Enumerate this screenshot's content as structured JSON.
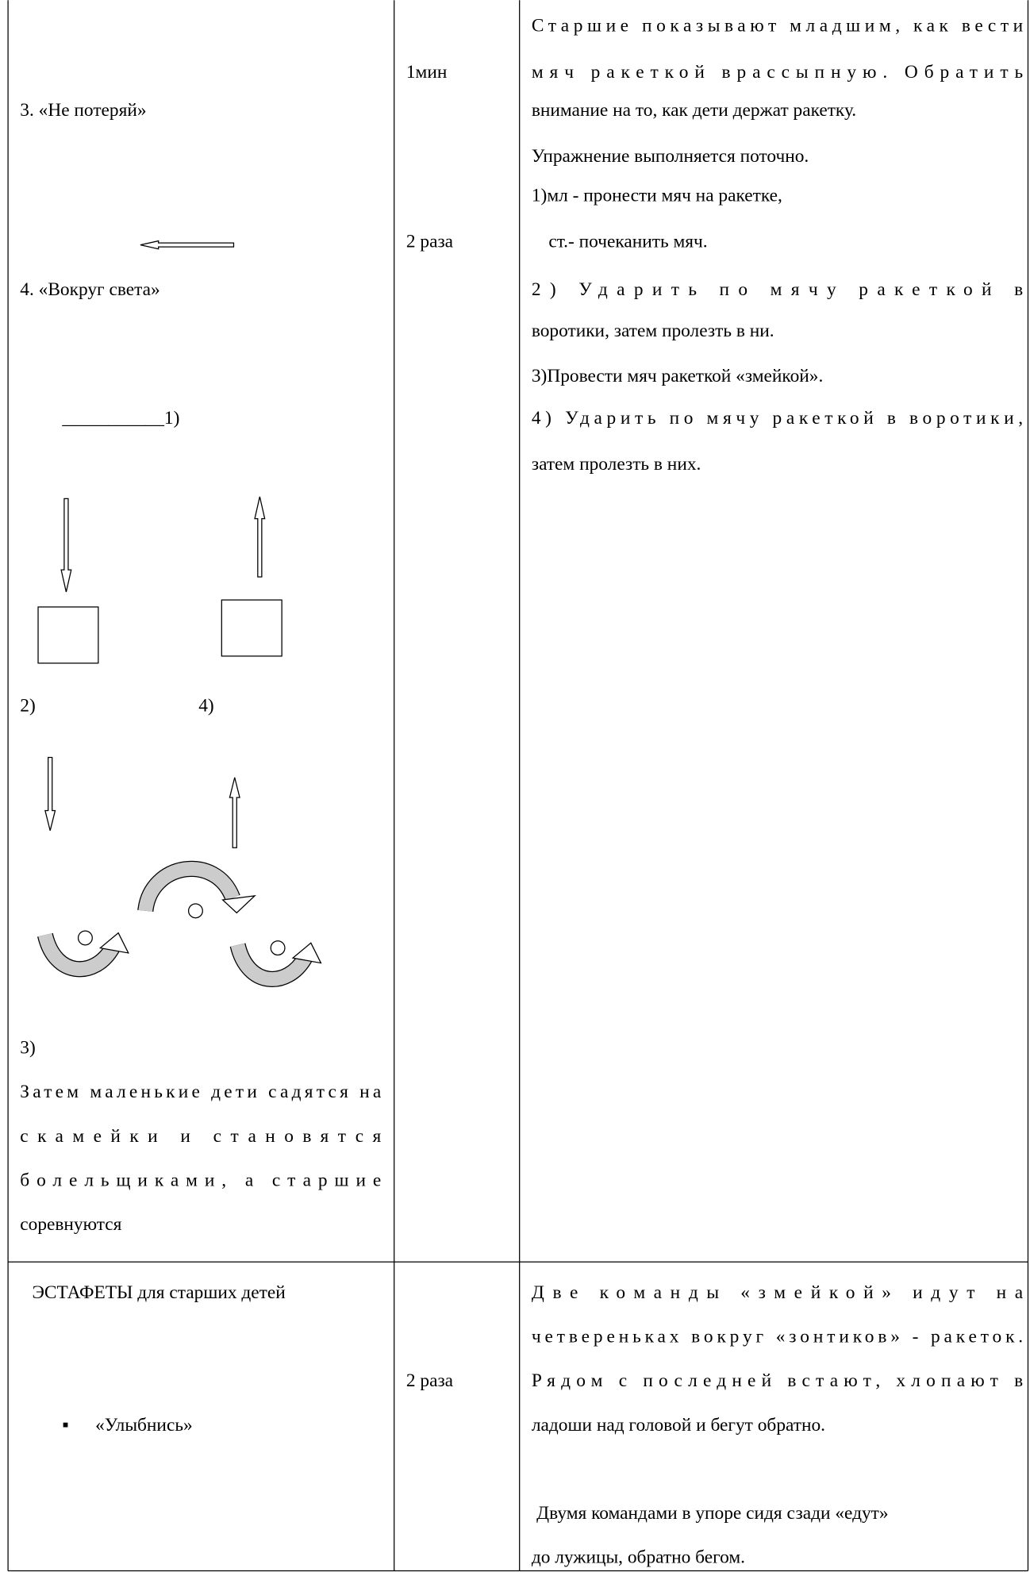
{
  "rows": [
    {
      "exercise": [
        "3. «Не потеряй»",
        "4. «Вокруг света»",
        "___________1)",
        "2)",
        "4)",
        "3)",
        "Затем маленькие дети садятся на",
        "скамейки и становятся",
        "болельщиками, а старшие",
        "соревнуются"
      ],
      "dosage": [
        "1мин",
        "2 раза"
      ],
      "method": [
        "Старшие показывают младшим, как вести",
        "мяч ракеткой врассыпную. Обратить",
        "внимание на то, как дети держат ракетку.",
        "Упражнение выполняется поточно.",
        "1)мл - пронести мяч на ракетке,",
        "ст.- почеканить мяч.",
        "2) Ударить по мячу ракеткой в",
        "воротики, затем пролезть в ни.",
        "3)Провести мяч ракеткой «змейкой».",
        "4) Ударить по мячу ракеткой в воротики,",
        "затем пролезть в них."
      ]
    },
    {
      "exercise": [
        "ЭСТАФЕТЫ для старших детей",
        "▪",
        "«Улыбнись»"
      ],
      "dosage": [
        "2 раза"
      ],
      "method": [
        "Две команды «змейкой» идут на",
        "четвереньках вокруг «зонтиков» - ракеток.",
        "Рядом с последней встают, хлопают в",
        "ладоши над головой и бегут обратно.",
        "Двумя командами в упоре сидя сзади «едут»",
        "до лужицы, обратно бегом."
      ]
    }
  ]
}
